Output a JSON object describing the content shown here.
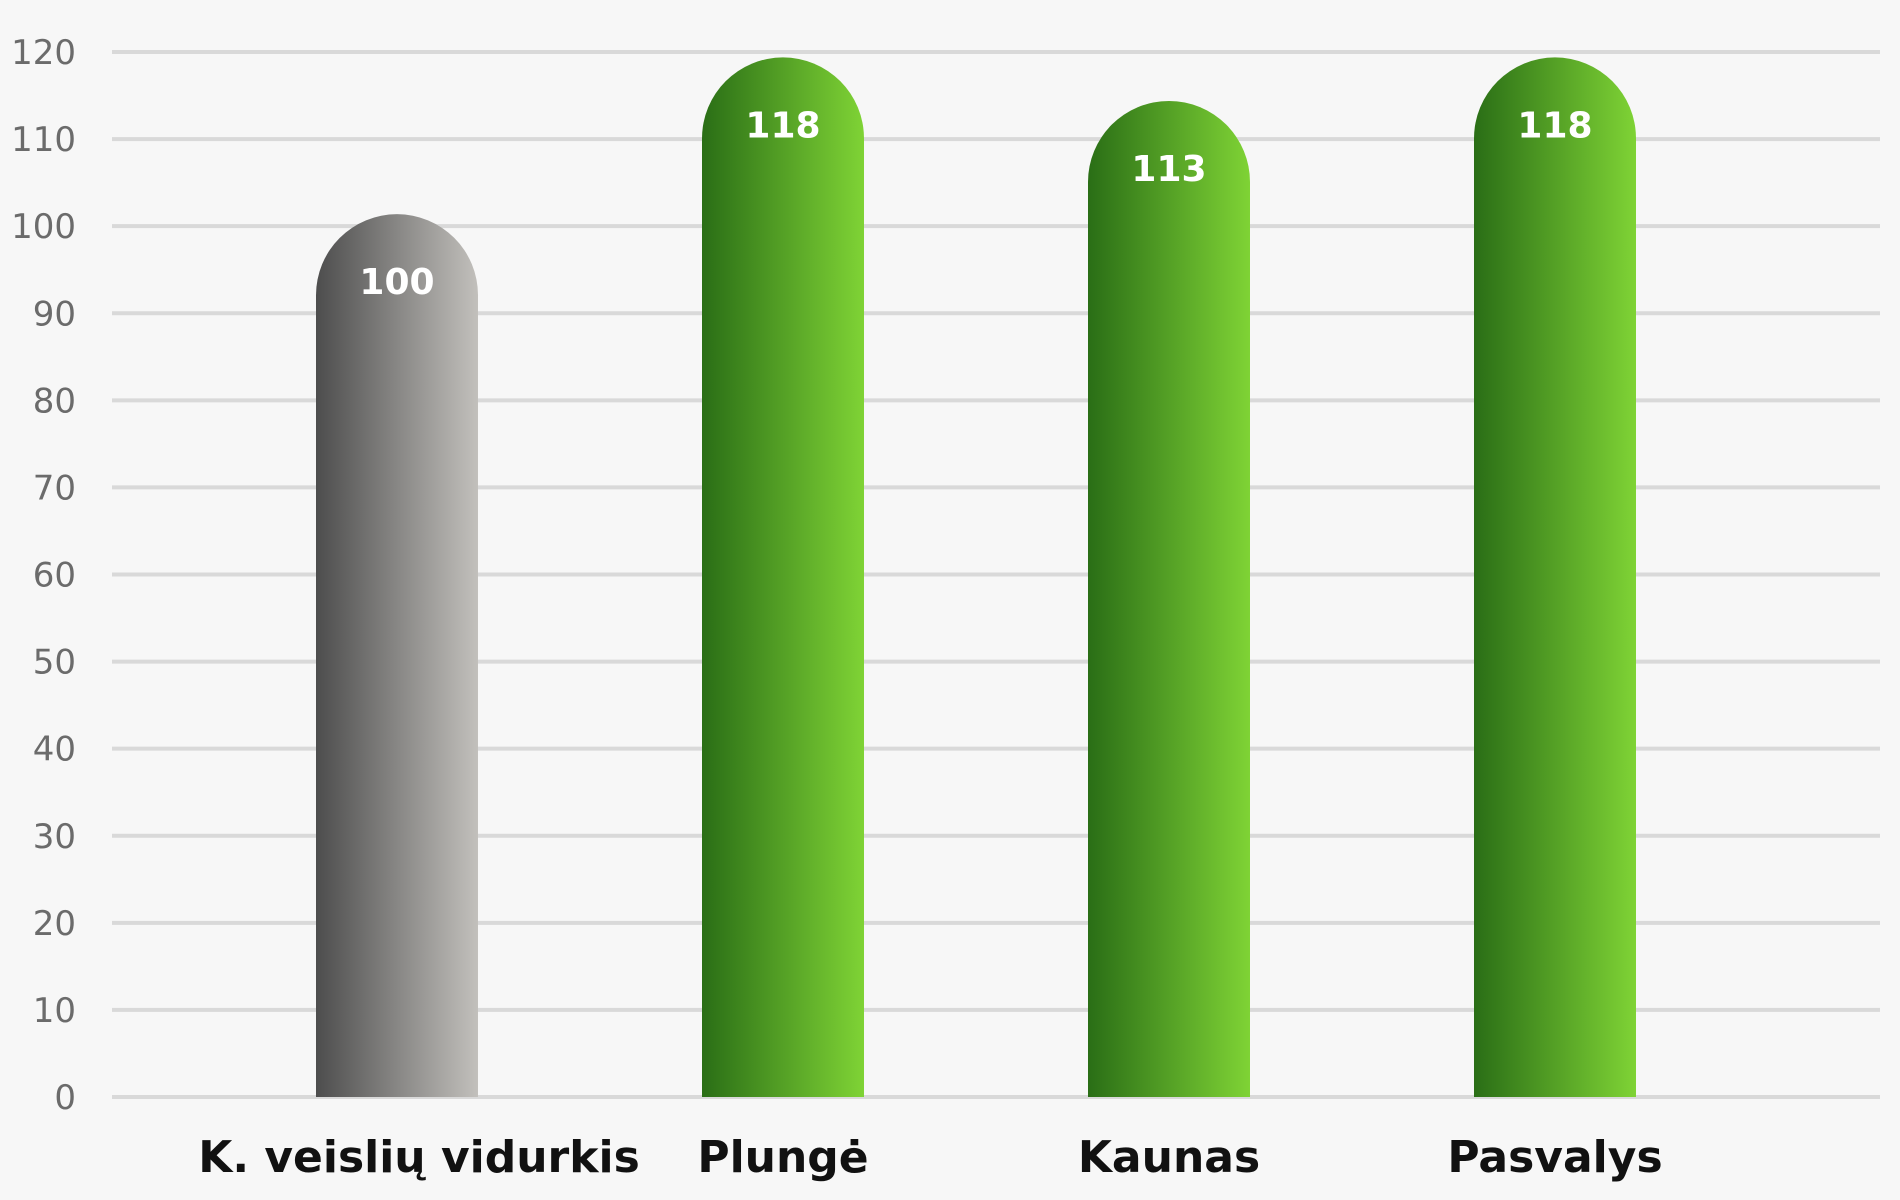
{
  "chart_data": {
    "type": "bar",
    "categories": [
      "K. veislių vidurkis",
      "Plungė",
      "Kaunas",
      "Pasvalys"
    ],
    "values": [
      100,
      118,
      113,
      118
    ],
    "value_labels": [
      "100",
      "118",
      "113",
      "118"
    ],
    "ylim": [
      0,
      120
    ],
    "yticks": [
      "0",
      "10",
      "20",
      "30",
      "40",
      "50",
      "60",
      "70",
      "80",
      "90",
      "100",
      "110",
      "120"
    ],
    "grid": true,
    "legend": "none",
    "colors": {
      "background": "#f7f7f7",
      "grid": "#d9d9d9",
      "baseline_bar": [
        "#4d4d4d",
        "#c2c0bc"
      ],
      "bars": [
        "#2a6e16",
        "#7fd335"
      ]
    }
  }
}
